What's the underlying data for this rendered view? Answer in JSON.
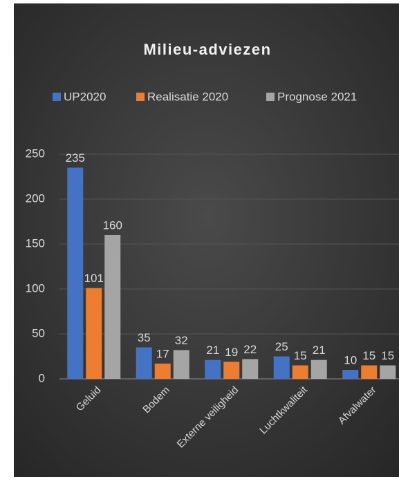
{
  "chart_data": {
    "type": "bar",
    "title": "Milieu-adviezen",
    "categories": [
      "Geluid",
      "Bodem",
      "Externe veiligheid",
      "Luchtkwaliteit",
      "Afvalwater"
    ],
    "series": [
      {
        "name": "UP2020",
        "color": "#4472c4",
        "values": [
          235,
          35,
          21,
          25,
          10
        ]
      },
      {
        "name": "Realisatie 2020",
        "color": "#ed7d31",
        "values": [
          101,
          17,
          19,
          15,
          15
        ]
      },
      {
        "name": "Prognose 2021",
        "color": "#a5a5a5",
        "values": [
          160,
          32,
          22,
          21,
          15
        ]
      }
    ],
    "ylim": [
      0,
      250
    ],
    "yticks": [
      0,
      50,
      100,
      150,
      200,
      250
    ],
    "grid": true,
    "legend": "top"
  }
}
